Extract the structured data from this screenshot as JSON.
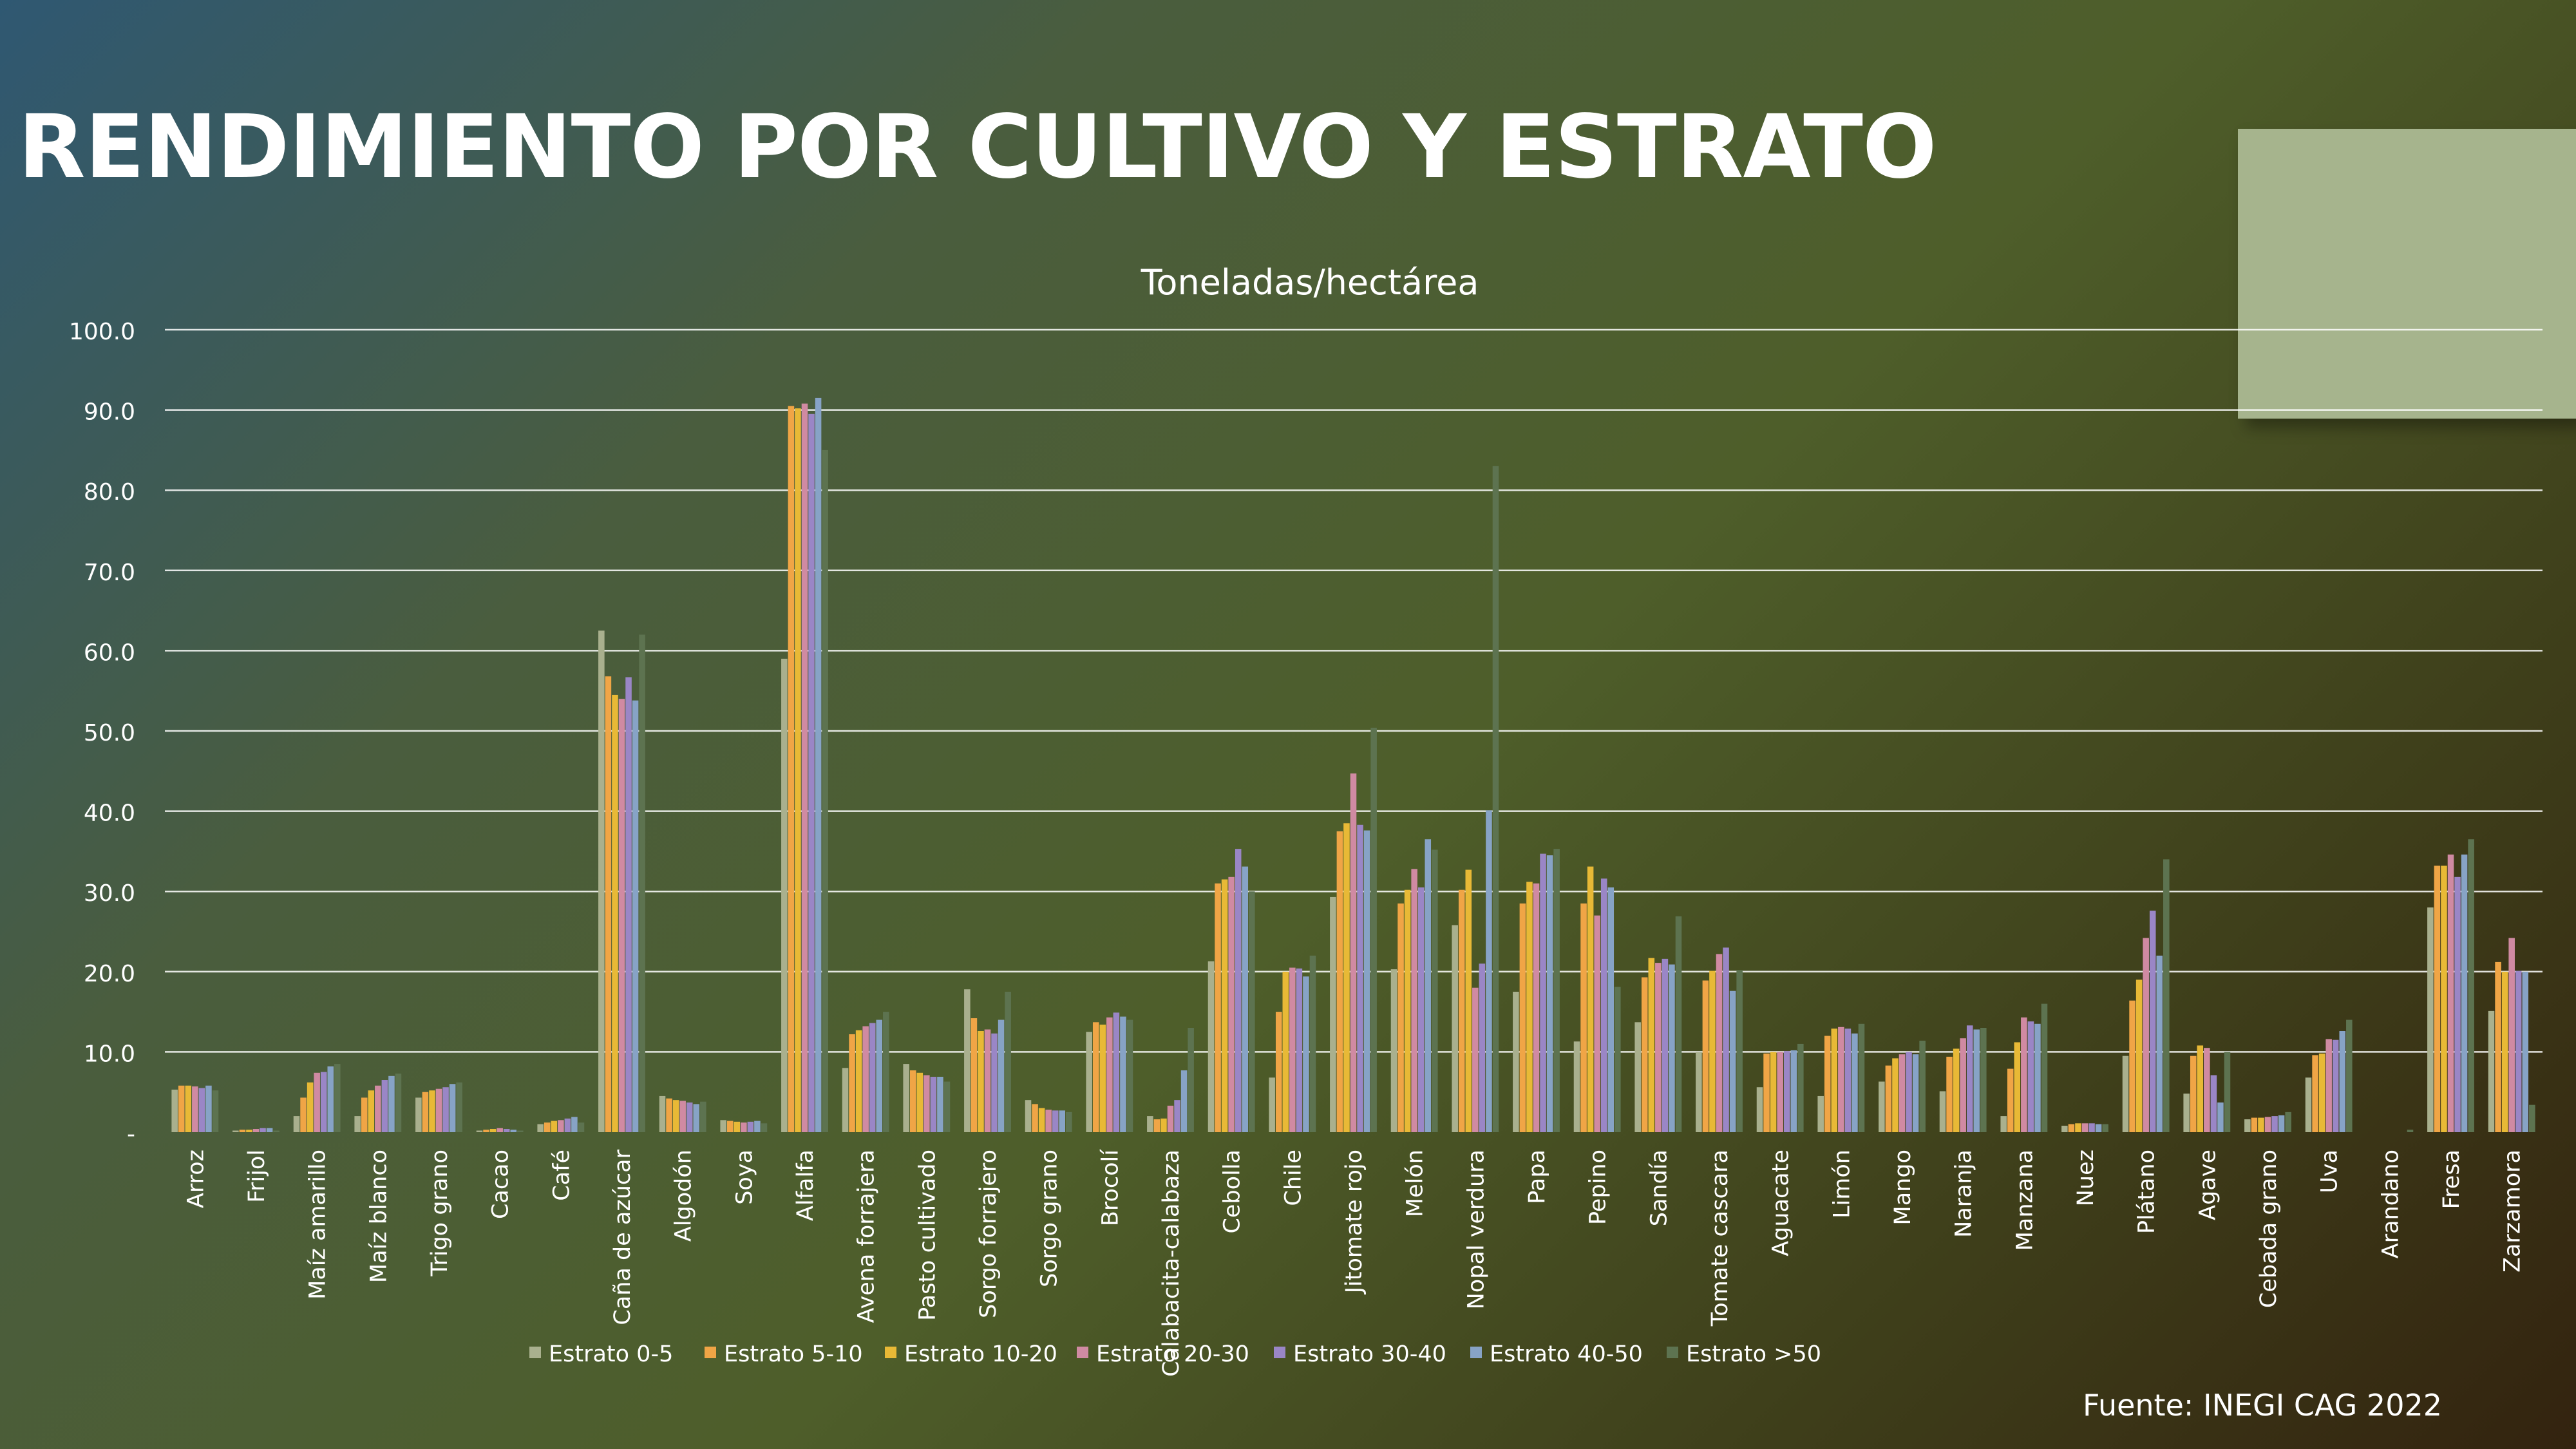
{
  "slide": {
    "title": "RENDIMIENTO POR CULTIVO Y ESTRATO",
    "source": "Fuente: INEGI CAG 2022"
  },
  "colors": {
    "series": [
      "#a9b08e",
      "#f0a546",
      "#e8b936",
      "#d08aa2",
      "#9a86c6",
      "#87a3c6",
      "#5d7350"
    ],
    "gridline": "#ffffff",
    "text": "#ffffff",
    "deco_box": "#a6b48d"
  },
  "chart_data": {
    "type": "bar",
    "title": "Toneladas/hectárea",
    "xlabel": "",
    "ylabel": "",
    "ylim": [
      0,
      100
    ],
    "y_ticks": [
      "-",
      "10.0",
      "20.0",
      "30.0",
      "40.0",
      "50.0",
      "60.0",
      "70.0",
      "80.0",
      "90.0",
      "100.0"
    ],
    "grid": true,
    "legend_position": "bottom",
    "categories": [
      "Arroz",
      "Frijol",
      "Maíz amarillo",
      "Maíz blanco",
      "Trigo grano",
      "Cacao",
      "Café",
      "Caña de azúcar",
      "Algodón",
      "Soya",
      "Alfalfa",
      "Avena forrajera",
      "Pasto cultivado",
      "Sorgo forrajero",
      "Sorgo grano",
      "Brocolí",
      "Calabacita-calabaza",
      "Cebolla",
      "Chile",
      "Jitomate rojo",
      "Melón",
      "Nopal verdura",
      "Papa",
      "Pepino",
      "Sandía",
      "Tomate cascara",
      "Aguacate",
      "Limón",
      "Mango",
      "Naranja",
      "Manzana",
      "Nuez",
      "Plátano",
      "Agave",
      "Cebada grano",
      "Uva",
      "Arandano",
      "Fresa",
      "Zarzamora"
    ],
    "series": [
      {
        "name": "Estrato 0-5",
        "values": [
          5.3,
          0.2,
          2.0,
          2.0,
          4.3,
          0.2,
          1.0,
          62.5,
          4.5,
          1.5,
          59.0,
          8.0,
          8.5,
          17.8,
          4.0,
          12.5,
          2.0,
          21.3,
          6.8,
          29.3,
          20.3,
          25.8,
          17.5,
          11.3,
          13.7,
          10.0,
          5.6,
          4.5,
          6.3,
          5.1,
          2.0,
          0.8,
          9.5,
          4.8,
          1.6,
          6.8,
          0.0,
          28.0,
          15.1
        ]
      },
      {
        "name": "Estrato 5-10",
        "values": [
          5.8,
          0.3,
          4.3,
          4.3,
          5.0,
          0.3,
          1.2,
          56.8,
          4.2,
          1.4,
          90.5,
          12.2,
          7.7,
          14.2,
          3.5,
          13.7,
          1.6,
          31.0,
          15.0,
          37.5,
          28.5,
          30.2,
          28.5,
          28.5,
          19.3,
          18.9,
          9.8,
          12.0,
          8.3,
          9.4,
          7.9,
          1.0,
          16.4,
          9.5,
          1.8,
          9.6,
          0.0,
          33.2,
          21.2
        ]
      },
      {
        "name": "Estrato 10-20",
        "values": [
          5.8,
          0.3,
          6.2,
          5.2,
          5.2,
          0.4,
          1.4,
          54.5,
          4.0,
          1.3,
          90.2,
          12.7,
          7.4,
          12.6,
          3.0,
          13.4,
          1.7,
          31.5,
          20.0,
          38.5,
          30.2,
          32.7,
          31.2,
          33.1,
          21.7,
          20.1,
          10.0,
          12.9,
          9.2,
          10.4,
          11.2,
          1.1,
          19.0,
          10.8,
          1.8,
          9.8,
          0.0,
          33.2,
          20.0
        ]
      },
      {
        "name": "Estrato 20-30",
        "values": [
          5.7,
          0.4,
          7.4,
          5.8,
          5.4,
          0.5,
          1.5,
          54.0,
          3.9,
          1.2,
          90.8,
          13.2,
          7.1,
          12.8,
          2.8,
          14.3,
          3.3,
          31.8,
          20.5,
          44.7,
          32.8,
          18.0,
          31.0,
          27.0,
          21.1,
          22.2,
          10.0,
          13.1,
          9.7,
          11.7,
          14.3,
          1.1,
          24.2,
          10.5,
          1.9,
          11.6,
          0.0,
          34.6,
          24.2
        ]
      },
      {
        "name": "Estrato 30-40",
        "values": [
          5.5,
          0.5,
          7.5,
          6.5,
          5.6,
          0.4,
          1.7,
          56.7,
          3.7,
          1.3,
          89.5,
          13.6,
          6.9,
          12.3,
          2.7,
          14.9,
          4.0,
          35.3,
          20.4,
          38.3,
          30.5,
          21.0,
          34.7,
          31.6,
          21.6,
          23.0,
          10.1,
          12.9,
          10.0,
          13.3,
          13.8,
          1.1,
          27.6,
          7.1,
          2.0,
          11.5,
          0.0,
          31.8,
          20.1
        ]
      },
      {
        "name": "Estrato 40-50",
        "values": [
          5.8,
          0.5,
          8.2,
          7.0,
          6.0,
          0.3,
          1.9,
          53.8,
          3.5,
          1.4,
          91.5,
          14.0,
          6.9,
          14.0,
          2.7,
          14.4,
          7.7,
          33.1,
          19.4,
          37.6,
          36.5,
          40.1,
          34.5,
          30.5,
          20.9,
          17.6,
          10.2,
          12.3,
          9.7,
          12.8,
          13.5,
          1.0,
          22.0,
          3.7,
          2.1,
          12.6,
          0.0,
          34.6,
          20.0
        ]
      },
      {
        "name": "Estrato >50",
        "values": [
          5.2,
          0.2,
          8.5,
          7.3,
          6.2,
          0.2,
          1.2,
          62.0,
          3.8,
          1.1,
          85.0,
          15.0,
          6.3,
          17.5,
          2.5,
          14.0,
          13.0,
          30.0,
          22.0,
          50.4,
          35.2,
          83.0,
          35.3,
          18.1,
          26.9,
          20.2,
          11.0,
          13.5,
          11.4,
          13.0,
          16.0,
          1.0,
          34.0,
          10.0,
          2.5,
          14.0,
          0.3,
          36.5,
          3.4
        ]
      }
    ]
  }
}
